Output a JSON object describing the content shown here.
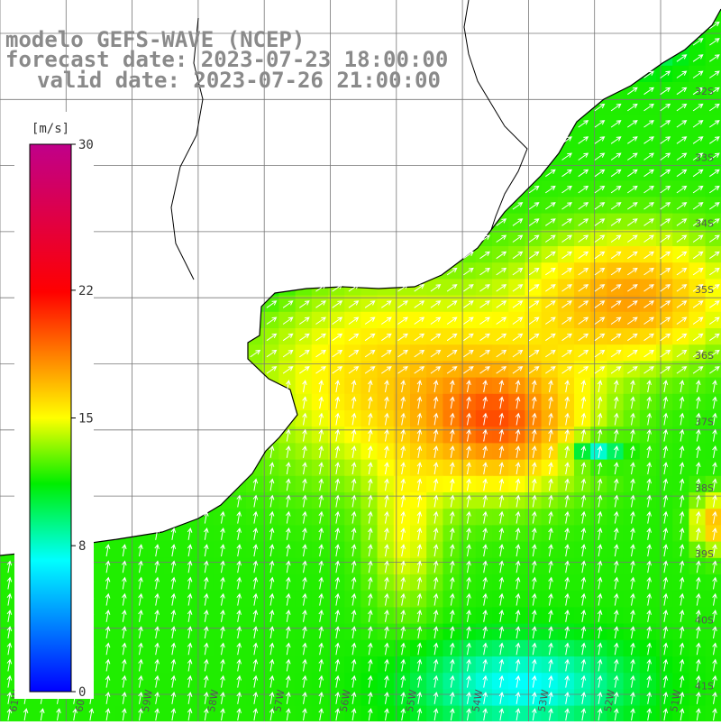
{
  "title": {
    "line1": "modelo GEFS-WAVE (NCEP)",
    "line2": "forecast date: 2023-07-23 18:00:00",
    "line3": "valid date: 2023-07-26 21:00:00"
  },
  "colorbar": {
    "unit": "[m/s]",
    "min": 0,
    "max": 30,
    "ticks": [
      "30",
      "22",
      "15",
      "8",
      "0"
    ],
    "tick_values": [
      30,
      22,
      15,
      8,
      0
    ],
    "colors": [
      "#8800aa",
      "#ff0000",
      "#ff7700",
      "#ffff00",
      "#00ee00",
      "#00ffff",
      "#0000ff"
    ]
  },
  "map": {
    "lat_labels": [
      "32S",
      "33S",
      "34S",
      "35S",
      "36S",
      "37S",
      "38S",
      "39S",
      "40S",
      "41S"
    ],
    "lon_labels": [
      "61W",
      "60W",
      "59W",
      "58W",
      "57W",
      "56W",
      "55W",
      "54W",
      "53W",
      "52W",
      "51W"
    ],
    "land_color": "#ffffff",
    "grid_color": "#777777",
    "coast_color": "#000000",
    "arrow_color": "#ffffff"
  }
}
